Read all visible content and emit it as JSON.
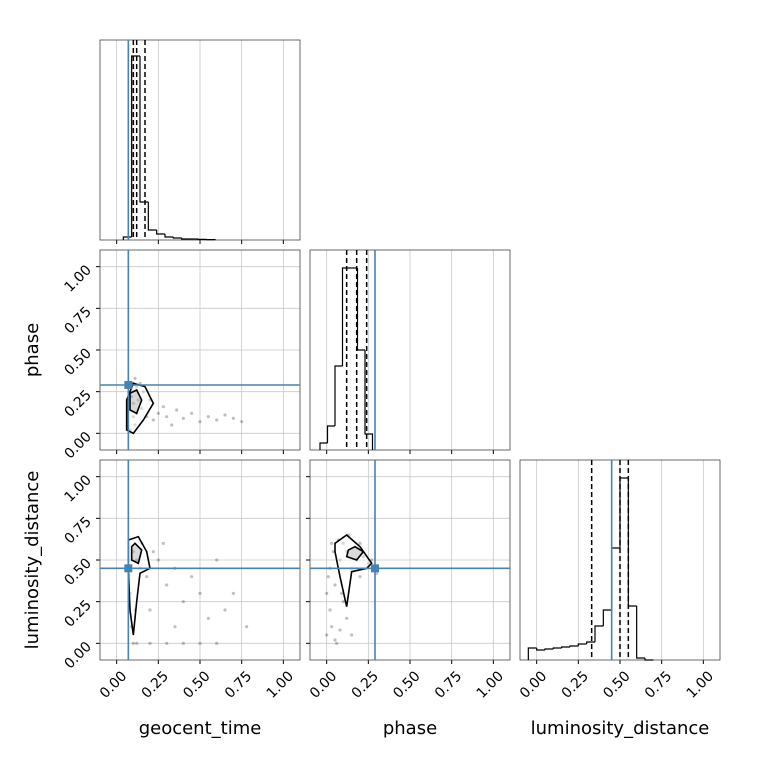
{
  "chart_data": {
    "type": "corner",
    "parameters": [
      "geocent_time",
      "phase",
      "luminosity_distance"
    ],
    "lim": [
      -0.1,
      1.1
    ],
    "ticks": [
      {
        "value": 0,
        "label": "0.00"
      },
      {
        "value": 0.25,
        "label": "0.25"
      },
      {
        "value": 0.5,
        "label": "0.50"
      },
      {
        "value": 0.75,
        "label": "0.75"
      },
      {
        "value": 1,
        "label": "1.00"
      }
    ],
    "grid": true,
    "truths": [
      0.07,
      0.29,
      0.45
    ],
    "truth_color": "#4682b4",
    "hist_ylim": [
      0,
      1
    ],
    "hist_color": "#000000",
    "point_color": "#000000",
    "contour_color": "#000000",
    "histograms": [
      {
        "bins": [
          0.04,
          0.09,
          0.14,
          0.19,
          0.24,
          0.29,
          0.34,
          0.39,
          0.44,
          0.49,
          0.54,
          0.59
        ],
        "counts": [
          0.015,
          0.92,
          0.19,
          0.05,
          0.03,
          0.015,
          0.01,
          0.005,
          0.005,
          0.003,
          0.002
        ],
        "quantiles": [
          0.1,
          0.12,
          0.17
        ]
      },
      {
        "bins": [
          -0.04,
          0.005,
          0.05,
          0.095,
          0.14,
          0.185,
          0.23,
          0.275
        ],
        "counts": [
          0.035,
          0.12,
          0.42,
          0.91,
          0.91,
          0.5,
          0.08
        ],
        "quantiles": [
          0.12,
          0.18,
          0.24
        ]
      },
      {
        "bins": [
          -0.05,
          0.0,
          0.05,
          0.1,
          0.15,
          0.2,
          0.25,
          0.3,
          0.35,
          0.4,
          0.45,
          0.5,
          0.55,
          0.6,
          0.65,
          0.7
        ],
        "counts": [
          0.06,
          0.05,
          0.055,
          0.06,
          0.065,
          0.07,
          0.08,
          0.09,
          0.17,
          0.25,
          0.56,
          0.91,
          0.27,
          0.01,
          0.0
        ],
        "quantiles": [
          0.33,
          0.5,
          0.55
        ]
      }
    ],
    "pairs": [
      {
        "points_x": [
          0.08,
          0.09,
          0.1,
          0.11,
          0.12,
          0.13,
          0.1,
          0.09,
          0.15,
          0.18,
          0.2,
          0.22,
          0.25,
          0.28,
          0.3,
          0.33,
          0.36,
          0.4,
          0.45,
          0.5,
          0.55,
          0.6,
          0.65,
          0.7,
          0.75,
          0.12,
          0.14,
          0.16,
          0.1,
          0.11
        ],
        "points_y": [
          0.02,
          0.25,
          0.3,
          0.05,
          0.12,
          0.2,
          0.18,
          0.22,
          0.15,
          0.1,
          0.2,
          0.08,
          0.12,
          0.16,
          0.1,
          0.05,
          0.14,
          0.09,
          0.12,
          0.07,
          0.1,
          0.08,
          0.11,
          0.09,
          0.07,
          0.28,
          0.3,
          0.25,
          0.1,
          0.33
        ],
        "contours": [
          {
            "x": [
              0.06,
              0.1,
              0.16,
              0.22,
              0.17,
              0.1,
              0.06
            ],
            "y": [
              0.02,
              0.0,
              0.08,
              0.18,
              0.28,
              0.3,
              0.2
            ]
          },
          {
            "x": [
              0.08,
              0.12,
              0.15,
              0.12,
              0.08
            ],
            "y": [
              0.14,
              0.12,
              0.2,
              0.26,
              0.24
            ]
          }
        ]
      },
      {
        "points_x": [
          0.08,
          0.1,
          0.12,
          0.15,
          0.18,
          0.2,
          0.25,
          0.3,
          0.35,
          0.4,
          0.45,
          0.5,
          0.55,
          0.6,
          0.65,
          0.7,
          0.78,
          0.1,
          0.12,
          0.2,
          0.3,
          0.4,
          0.5,
          0.6,
          0.09,
          0.11,
          0.14,
          0.22,
          0.28,
          0.35
        ],
        "points_y": [
          0.3,
          0.55,
          0.5,
          0.6,
          0.4,
          0.2,
          0.5,
          0.35,
          0.45,
          0.25,
          0.4,
          0.3,
          0.15,
          0.5,
          0.2,
          0.3,
          0.1,
          0.0,
          0.0,
          0.0,
          0.0,
          0.0,
          0.0,
          0.0,
          0.1,
          0.2,
          0.45,
          0.55,
          0.6,
          0.1
        ],
        "contours": [
          {
            "x": [
              0.07,
              0.13,
              0.18,
              0.2,
              0.14,
              0.12,
              0.1,
              0.08,
              0.07
            ],
            "y": [
              0.62,
              0.64,
              0.55,
              0.45,
              0.42,
              0.25,
              0.05,
              0.2,
              0.45
            ]
          },
          {
            "x": [
              0.09,
              0.13,
              0.15,
              0.11,
              0.09
            ],
            "y": [
              0.5,
              0.48,
              0.56,
              0.6,
              0.58
            ]
          }
        ]
      },
      {
        "points_x": [
          0.0,
          0.02,
          0.05,
          0.08,
          0.1,
          0.12,
          0.15,
          0.18,
          0.2,
          0.22,
          0.25,
          0.28,
          0.3,
          0.03,
          0.06,
          0.09,
          0.12,
          0.15,
          0.04,
          0.07,
          0.1,
          0.02,
          0.0,
          0.05,
          0.01,
          0.27,
          0.2,
          0.13,
          0.08,
          0.03
        ],
        "points_y": [
          0.05,
          0.2,
          0.35,
          0.5,
          0.6,
          0.55,
          0.45,
          0.5,
          0.4,
          0.52,
          0.48,
          0.45,
          0.42,
          0.1,
          0.0,
          0.3,
          0.15,
          0.05,
          0.55,
          0.62,
          0.25,
          0.45,
          0.3,
          0.02,
          0.4,
          0.5,
          0.6,
          0.65,
          0.08,
          0.6
        ],
        "contours": [
          {
            "x": [
              0.05,
              0.12,
              0.2,
              0.27,
              0.24,
              0.15,
              0.12,
              0.08,
              0.05
            ],
            "y": [
              0.6,
              0.65,
              0.58,
              0.48,
              0.45,
              0.43,
              0.22,
              0.4,
              0.55
            ]
          },
          {
            "x": [
              0.12,
              0.18,
              0.22,
              0.17,
              0.13
            ],
            "y": [
              0.52,
              0.5,
              0.55,
              0.58,
              0.56
            ]
          }
        ]
      }
    ]
  }
}
